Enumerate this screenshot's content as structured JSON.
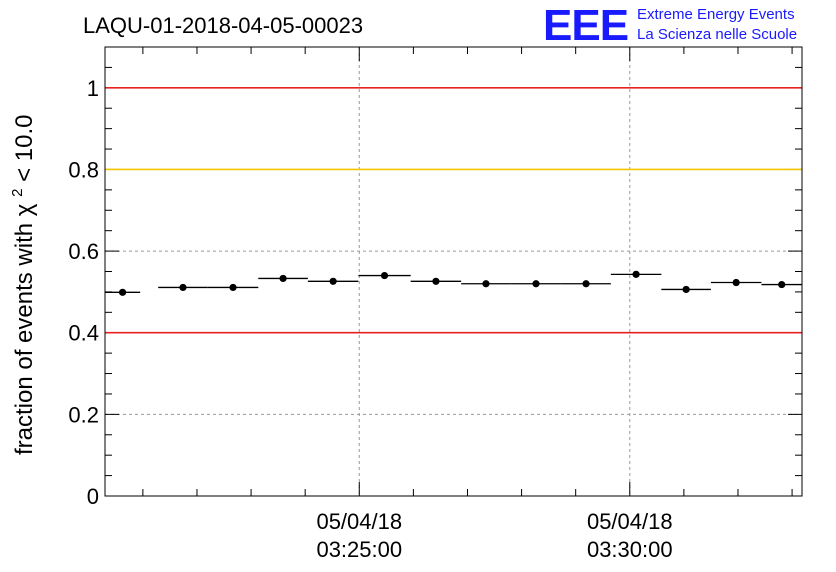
{
  "chart_data": {
    "type": "scatter",
    "title": "LAQU-01-2018-04-05-00023",
    "ylabel": "fraction of events with",
    "ylabel_symbol": "χ",
    "ylabel_sup": "2",
    "ylabel_suffix": " < 10.0",
    "ylim": [
      0,
      1.1
    ],
    "xlim": [
      "03:20:18",
      "03:33:11"
    ],
    "yticks": [
      "0",
      "0.2",
      "0.4",
      "0.6",
      "0.8",
      "1"
    ],
    "xticks": [
      {
        "date": "05/04/18",
        "time": "03:25:00"
      },
      {
        "date": "05/04/18",
        "time": "03:30:00"
      }
    ],
    "grid": true,
    "reference_lines": [
      {
        "y": 1.0,
        "color": "#e8221c"
      },
      {
        "y": 0.8,
        "color": "#f5c400"
      },
      {
        "y": 0.4,
        "color": "#e8221c"
      }
    ],
    "points": [
      {
        "x_start": "03:20:18",
        "x_end": "03:20:57",
        "y": 0.499
      },
      {
        "x_start": "03:21:17",
        "x_end": "03:22:12",
        "y": 0.511
      },
      {
        "x_start": "03:22:12",
        "x_end": "03:23:08",
        "y": 0.511
      },
      {
        "x_start": "03:23:08",
        "x_end": "03:24:03",
        "y": 0.533
      },
      {
        "x_start": "03:24:03",
        "x_end": "03:24:59",
        "y": 0.526
      },
      {
        "x_start": "03:24:59",
        "x_end": "03:25:57",
        "y": 0.54
      },
      {
        "x_start": "03:25:57",
        "x_end": "03:26:53",
        "y": 0.526
      },
      {
        "x_start": "03:26:53",
        "x_end": "03:27:48",
        "y": 0.52
      },
      {
        "x_start": "03:27:48",
        "x_end": "03:28:44",
        "y": 0.52
      },
      {
        "x_start": "03:28:44",
        "x_end": "03:29:39",
        "y": 0.52
      },
      {
        "x_start": "03:29:39",
        "x_end": "03:30:35",
        "y": 0.543
      },
      {
        "x_start": "03:30:35",
        "x_end": "03:31:30",
        "y": 0.506
      },
      {
        "x_start": "03:31:30",
        "x_end": "03:32:26",
        "y": 0.523
      },
      {
        "x_start": "03:32:26",
        "x_end": "03:33:11",
        "y": 0.518
      }
    ]
  },
  "logo": {
    "letters": "EEE",
    "line1": "Extreme Energy Events",
    "line2": "La Scienza nelle Scuole",
    "color": "#1a1aff"
  }
}
